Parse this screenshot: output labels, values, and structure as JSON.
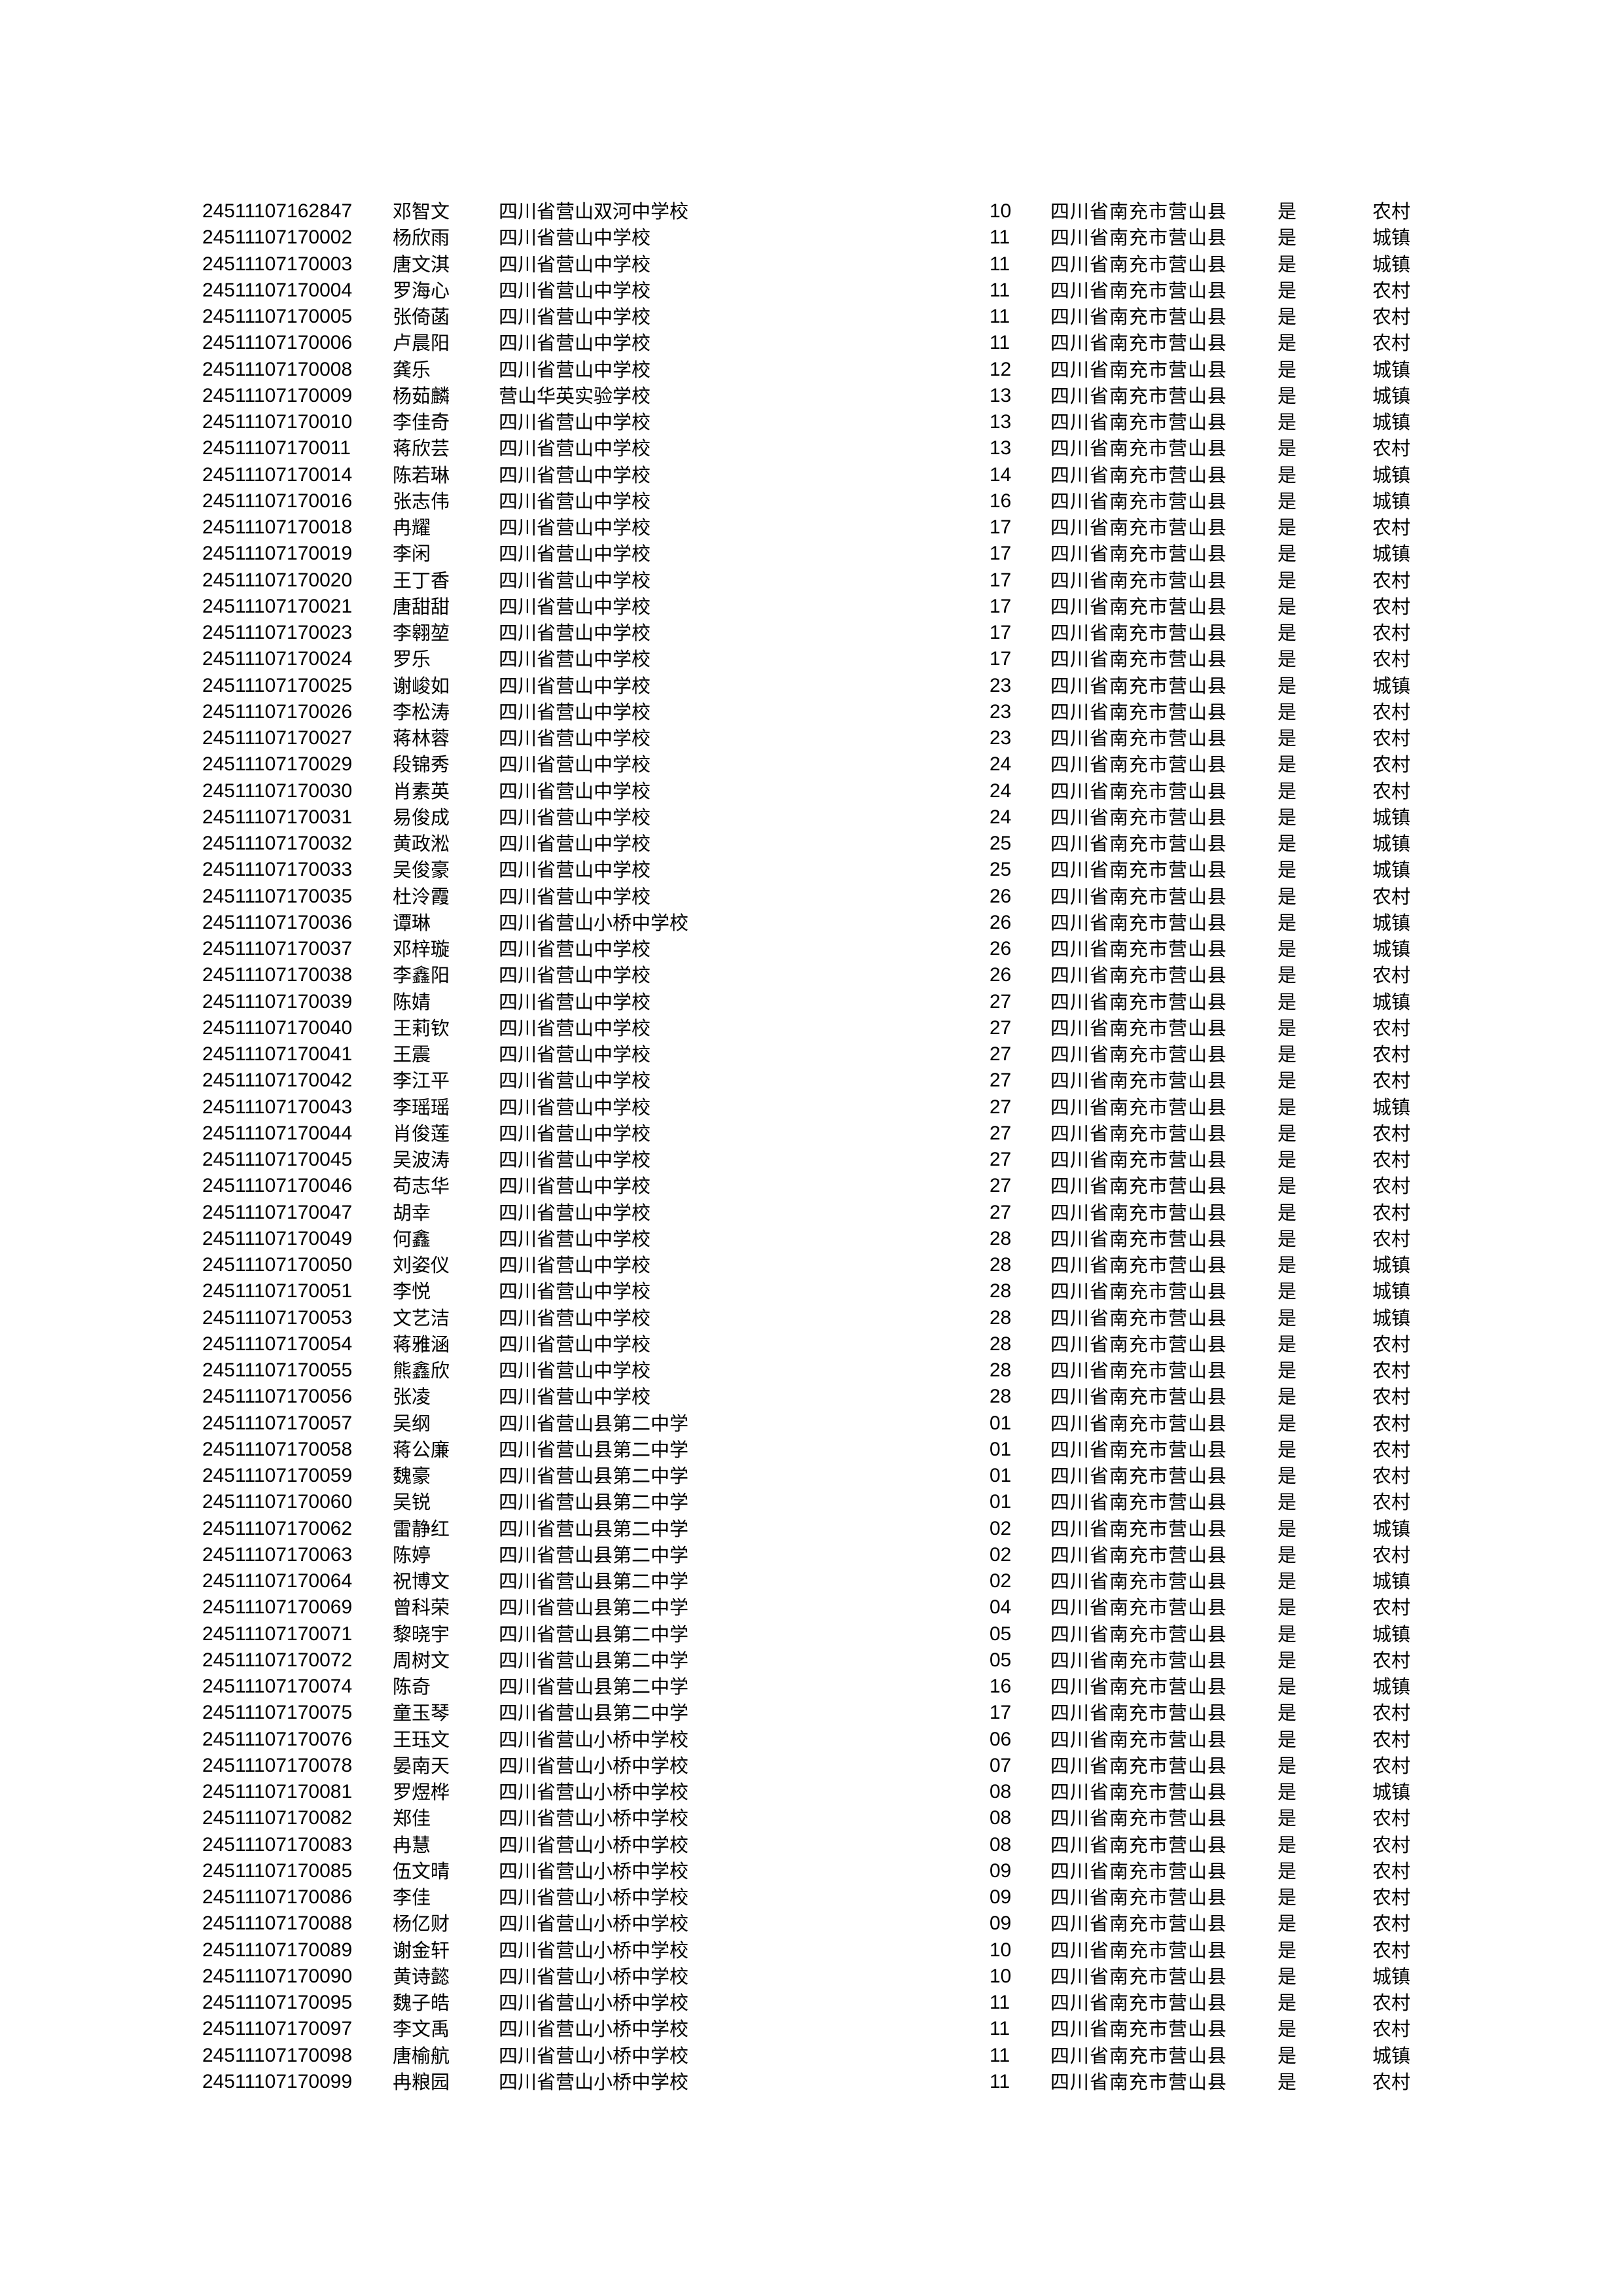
{
  "rows": [
    [
      "24511107162847",
      "邓智文",
      "四川省营山双河中学校",
      "10",
      "四川省南充市营山县",
      "是",
      "农村"
    ],
    [
      "24511107170002",
      "杨欣雨",
      "四川省营山中学校",
      "11",
      "四川省南充市营山县",
      "是",
      "城镇"
    ],
    [
      "24511107170003",
      "唐文淇",
      "四川省营山中学校",
      "11",
      "四川省南充市营山县",
      "是",
      "城镇"
    ],
    [
      "24511107170004",
      "罗海心",
      "四川省营山中学校",
      "11",
      "四川省南充市营山县",
      "是",
      "农村"
    ],
    [
      "24511107170005",
      "张倚菡",
      "四川省营山中学校",
      "11",
      "四川省南充市营山县",
      "是",
      "农村"
    ],
    [
      "24511107170006",
      "卢晨阳",
      "四川省营山中学校",
      "11",
      "四川省南充市营山县",
      "是",
      "农村"
    ],
    [
      "24511107170008",
      "龚乐",
      "四川省营山中学校",
      "12",
      "四川省南充市营山县",
      "是",
      "城镇"
    ],
    [
      "24511107170009",
      "杨茹麟",
      "营山华英实验学校",
      "13",
      "四川省南充市营山县",
      "是",
      "城镇"
    ],
    [
      "24511107170010",
      "李佳奇",
      "四川省营山中学校",
      "13",
      "四川省南充市营山县",
      "是",
      "城镇"
    ],
    [
      "24511107170011",
      "蒋欣芸",
      "四川省营山中学校",
      "13",
      "四川省南充市营山县",
      "是",
      "农村"
    ],
    [
      "24511107170014",
      "陈若琳",
      "四川省营山中学校",
      "14",
      "四川省南充市营山县",
      "是",
      "城镇"
    ],
    [
      "24511107170016",
      "张志伟",
      "四川省营山中学校",
      "16",
      "四川省南充市营山县",
      "是",
      "城镇"
    ],
    [
      "24511107170018",
      "冉耀",
      "四川省营山中学校",
      "17",
      "四川省南充市营山县",
      "是",
      "农村"
    ],
    [
      "24511107170019",
      "李闲",
      "四川省营山中学校",
      "17",
      "四川省南充市营山县",
      "是",
      "城镇"
    ],
    [
      "24511107170020",
      "王丁香",
      "四川省营山中学校",
      "17",
      "四川省南充市营山县",
      "是",
      "农村"
    ],
    [
      "24511107170021",
      "唐甜甜",
      "四川省营山中学校",
      "17",
      "四川省南充市营山县",
      "是",
      "农村"
    ],
    [
      "24511107170023",
      "李翱堃",
      "四川省营山中学校",
      "17",
      "四川省南充市营山县",
      "是",
      "农村"
    ],
    [
      "24511107170024",
      "罗乐",
      "四川省营山中学校",
      "17",
      "四川省南充市营山县",
      "是",
      "农村"
    ],
    [
      "24511107170025",
      "谢峻如",
      "四川省营山中学校",
      "23",
      "四川省南充市营山县",
      "是",
      "城镇"
    ],
    [
      "24511107170026",
      "李松涛",
      "四川省营山中学校",
      "23",
      "四川省南充市营山县",
      "是",
      "农村"
    ],
    [
      "24511107170027",
      "蒋林蓉",
      "四川省营山中学校",
      "23",
      "四川省南充市营山县",
      "是",
      "农村"
    ],
    [
      "24511107170029",
      "段锦秀",
      "四川省营山中学校",
      "24",
      "四川省南充市营山县",
      "是",
      "农村"
    ],
    [
      "24511107170030",
      "肖素英",
      "四川省营山中学校",
      "24",
      "四川省南充市营山县",
      "是",
      "农村"
    ],
    [
      "24511107170031",
      "易俊成",
      "四川省营山中学校",
      "24",
      "四川省南充市营山县",
      "是",
      "城镇"
    ],
    [
      "24511107170032",
      "黄政淞",
      "四川省营山中学校",
      "25",
      "四川省南充市营山县",
      "是",
      "城镇"
    ],
    [
      "24511107170033",
      "吴俊豪",
      "四川省营山中学校",
      "25",
      "四川省南充市营山县",
      "是",
      "城镇"
    ],
    [
      "24511107170035",
      "杜泠霞",
      "四川省营山中学校",
      "26",
      "四川省南充市营山县",
      "是",
      "农村"
    ],
    [
      "24511107170036",
      "谭琳",
      "四川省营山小桥中学校",
      "26",
      "四川省南充市营山县",
      "是",
      "城镇"
    ],
    [
      "24511107170037",
      "邓梓璇",
      "四川省营山中学校",
      "26",
      "四川省南充市营山县",
      "是",
      "城镇"
    ],
    [
      "24511107170038",
      "李鑫阳",
      "四川省营山中学校",
      "26",
      "四川省南充市营山县",
      "是",
      "农村"
    ],
    [
      "24511107170039",
      "陈婧",
      "四川省营山中学校",
      "27",
      "四川省南充市营山县",
      "是",
      "城镇"
    ],
    [
      "24511107170040",
      "王莉钦",
      "四川省营山中学校",
      "27",
      "四川省南充市营山县",
      "是",
      "农村"
    ],
    [
      "24511107170041",
      "王震",
      "四川省营山中学校",
      "27",
      "四川省南充市营山县",
      "是",
      "农村"
    ],
    [
      "24511107170042",
      "李江平",
      "四川省营山中学校",
      "27",
      "四川省南充市营山县",
      "是",
      "农村"
    ],
    [
      "24511107170043",
      "李瑶瑶",
      "四川省营山中学校",
      "27",
      "四川省南充市营山县",
      "是",
      "城镇"
    ],
    [
      "24511107170044",
      "肖俊莲",
      "四川省营山中学校",
      "27",
      "四川省南充市营山县",
      "是",
      "农村"
    ],
    [
      "24511107170045",
      "吴波涛",
      "四川省营山中学校",
      "27",
      "四川省南充市营山县",
      "是",
      "农村"
    ],
    [
      "24511107170046",
      "苟志华",
      "四川省营山中学校",
      "27",
      "四川省南充市营山县",
      "是",
      "农村"
    ],
    [
      "24511107170047",
      "胡幸",
      "四川省营山中学校",
      "27",
      "四川省南充市营山县",
      "是",
      "农村"
    ],
    [
      "24511107170049",
      "何鑫",
      "四川省营山中学校",
      "28",
      "四川省南充市营山县",
      "是",
      "农村"
    ],
    [
      "24511107170050",
      "刘姿仪",
      "四川省营山中学校",
      "28",
      "四川省南充市营山县",
      "是",
      "城镇"
    ],
    [
      "24511107170051",
      "李悦",
      "四川省营山中学校",
      "28",
      "四川省南充市营山县",
      "是",
      "城镇"
    ],
    [
      "24511107170053",
      "文艺洁",
      "四川省营山中学校",
      "28",
      "四川省南充市营山县",
      "是",
      "城镇"
    ],
    [
      "24511107170054",
      "蒋雅涵",
      "四川省营山中学校",
      "28",
      "四川省南充市营山县",
      "是",
      "农村"
    ],
    [
      "24511107170055",
      "熊鑫欣",
      "四川省营山中学校",
      "28",
      "四川省南充市营山县",
      "是",
      "农村"
    ],
    [
      "24511107170056",
      "张凌",
      "四川省营山中学校",
      "28",
      "四川省南充市营山县",
      "是",
      "农村"
    ],
    [
      "24511107170057",
      "吴纲",
      "四川省营山县第二中学",
      "01",
      "四川省南充市营山县",
      "是",
      "农村"
    ],
    [
      "24511107170058",
      "蒋公廉",
      "四川省营山县第二中学",
      "01",
      "四川省南充市营山县",
      "是",
      "农村"
    ],
    [
      "24511107170059",
      "魏豪",
      "四川省营山县第二中学",
      "01",
      "四川省南充市营山县",
      "是",
      "农村"
    ],
    [
      "24511107170060",
      "吴锐",
      "四川省营山县第二中学",
      "01",
      "四川省南充市营山县",
      "是",
      "农村"
    ],
    [
      "24511107170062",
      "雷静红",
      "四川省营山县第二中学",
      "02",
      "四川省南充市营山县",
      "是",
      "城镇"
    ],
    [
      "24511107170063",
      "陈婷",
      "四川省营山县第二中学",
      "02",
      "四川省南充市营山县",
      "是",
      "农村"
    ],
    [
      "24511107170064",
      "祝博文",
      "四川省营山县第二中学",
      "02",
      "四川省南充市营山县",
      "是",
      "城镇"
    ],
    [
      "24511107170069",
      "曾科荣",
      "四川省营山县第二中学",
      "04",
      "四川省南充市营山县",
      "是",
      "农村"
    ],
    [
      "24511107170071",
      "黎晓宇",
      "四川省营山县第二中学",
      "05",
      "四川省南充市营山县",
      "是",
      "城镇"
    ],
    [
      "24511107170072",
      "周树文",
      "四川省营山县第二中学",
      "05",
      "四川省南充市营山县",
      "是",
      "农村"
    ],
    [
      "24511107170074",
      "陈奇",
      "四川省营山县第二中学",
      "16",
      "四川省南充市营山县",
      "是",
      "城镇"
    ],
    [
      "24511107170075",
      "童玉琴",
      "四川省营山县第二中学",
      "17",
      "四川省南充市营山县",
      "是",
      "农村"
    ],
    [
      "24511107170076",
      "王珏文",
      "四川省营山小桥中学校",
      "06",
      "四川省南充市营山县",
      "是",
      "农村"
    ],
    [
      "24511107170078",
      "晏南天",
      "四川省营山小桥中学校",
      "07",
      "四川省南充市营山县",
      "是",
      "农村"
    ],
    [
      "24511107170081",
      "罗煜桦",
      "四川省营山小桥中学校",
      "08",
      "四川省南充市营山县",
      "是",
      "城镇"
    ],
    [
      "24511107170082",
      "郑佳",
      "四川省营山小桥中学校",
      "08",
      "四川省南充市营山县",
      "是",
      "农村"
    ],
    [
      "24511107170083",
      "冉慧",
      "四川省营山小桥中学校",
      "08",
      "四川省南充市营山县",
      "是",
      "农村"
    ],
    [
      "24511107170085",
      "伍文晴",
      "四川省营山小桥中学校",
      "09",
      "四川省南充市营山县",
      "是",
      "农村"
    ],
    [
      "24511107170086",
      "李佳",
      "四川省营山小桥中学校",
      "09",
      "四川省南充市营山县",
      "是",
      "农村"
    ],
    [
      "24511107170088",
      "杨亿财",
      "四川省营山小桥中学校",
      "09",
      "四川省南充市营山县",
      "是",
      "农村"
    ],
    [
      "24511107170089",
      "谢金轩",
      "四川省营山小桥中学校",
      "10",
      "四川省南充市营山县",
      "是",
      "农村"
    ],
    [
      "24511107170090",
      "黄诗懿",
      "四川省营山小桥中学校",
      "10",
      "四川省南充市营山县",
      "是",
      "城镇"
    ],
    [
      "24511107170095",
      "魏子皓",
      "四川省营山小桥中学校",
      "11",
      "四川省南充市营山县",
      "是",
      "农村"
    ],
    [
      "24511107170097",
      "李文禹",
      "四川省营山小桥中学校",
      "11",
      "四川省南充市营山县",
      "是",
      "农村"
    ],
    [
      "24511107170098",
      "唐榆航",
      "四川省营山小桥中学校",
      "11",
      "四川省南充市营山县",
      "是",
      "城镇"
    ],
    [
      "24511107170099",
      "冉粮园",
      "四川省营山小桥中学校",
      "11",
      "四川省南充市营山县",
      "是",
      "农村"
    ]
  ]
}
